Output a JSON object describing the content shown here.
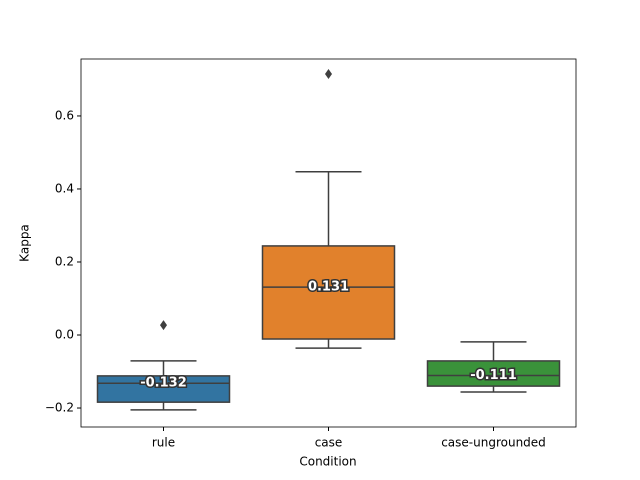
{
  "chart_data": {
    "type": "box",
    "x_label": "Condition",
    "y_label": "Kappa",
    "categories": [
      "rule",
      "case",
      "case-ungrounded"
    ],
    "colors": [
      "#3274a1",
      "#e1812c",
      "#3a923a"
    ],
    "boxes": [
      {
        "whislo": -0.205,
        "q1": -0.184,
        "med": -0.132,
        "q3": -0.112,
        "whishi": -0.071,
        "fliers": [
          0.027
        ]
      },
      {
        "whislo": -0.036,
        "q1": -0.011,
        "med": 0.131,
        "q3": 0.244,
        "whishi": 0.447,
        "fliers": [
          0.715
        ]
      },
      {
        "whislo": -0.156,
        "q1": -0.14,
        "med": -0.111,
        "q3": -0.071,
        "whishi": -0.019,
        "fliers": []
      }
    ],
    "ylim": [
      -0.252,
      0.756
    ],
    "yticks": [
      {
        "value": -0.2,
        "label": "−0.2"
      },
      {
        "value": 0,
        "label": "0.0"
      },
      0.2,
      0.4,
      0.6
    ]
  }
}
